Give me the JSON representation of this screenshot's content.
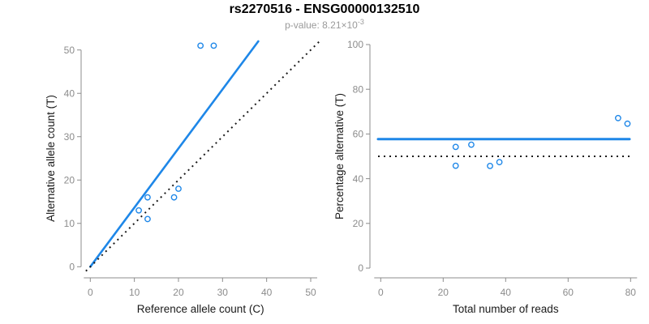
{
  "header": {
    "title": "rs2270516 - ENSG00000132510",
    "p_value": {
      "prefix": "p-value: 8.21×10",
      "exponent": "-3"
    }
  },
  "colors": {
    "accent_blue": "#1E87E8",
    "axis_gray": "#8C8C8C",
    "subtitle_gray": "#9A9A9A",
    "black": "#1A1A1A"
  },
  "chart_data": [
    {
      "type": "scatter",
      "panel": "left",
      "xlabel": "Reference allele count (C)",
      "ylabel": "Alternative allele count (T)",
      "xlim": [
        0,
        50
      ],
      "ylim": [
        0,
        50
      ],
      "xticks": [
        0,
        10,
        20,
        30,
        40,
        50
      ],
      "yticks": [
        0,
        10,
        20,
        30,
        40,
        50
      ],
      "grid": false,
      "points": [
        {
          "x": 11,
          "y": 13
        },
        {
          "x": 13,
          "y": 16
        },
        {
          "x": 13,
          "y": 11
        },
        {
          "x": 19,
          "y": 16
        },
        {
          "x": 20,
          "y": 18
        },
        {
          "x": 25,
          "y": 51
        },
        {
          "x": 28,
          "y": 51
        }
      ],
      "lines": [
        {
          "name": "fitted-ratio-line",
          "kind": "fit",
          "slope": 1.3643,
          "intercept": 0,
          "style": "solid",
          "color": "accent_blue"
        },
        {
          "name": "identity-line",
          "kind": "identity",
          "style": "dotted",
          "color": "black"
        }
      ]
    },
    {
      "type": "scatter",
      "panel": "right",
      "xlabel": "Total number of reads",
      "ylabel": "Percentage alternative (T)",
      "xlim": [
        0,
        80
      ],
      "ylim": [
        0,
        100
      ],
      "xticks": [
        0,
        20,
        40,
        60,
        80
      ],
      "yticks": [
        0,
        20,
        40,
        60,
        80,
        100
      ],
      "grid": false,
      "points": [
        {
          "x": 24,
          "y": 54.2
        },
        {
          "x": 29,
          "y": 55.2
        },
        {
          "x": 24,
          "y": 45.8
        },
        {
          "x": 35,
          "y": 45.7
        },
        {
          "x": 38,
          "y": 47.4
        },
        {
          "x": 76,
          "y": 67.1
        },
        {
          "x": 79,
          "y": 64.6
        }
      ],
      "lines": [
        {
          "name": "mean-percentage-line",
          "kind": "hline",
          "value": 57.7,
          "style": "solid",
          "color": "accent_blue"
        },
        {
          "name": "fifty-percent-line",
          "kind": "hline",
          "value": 50,
          "style": "dotted",
          "color": "black"
        }
      ]
    }
  ]
}
